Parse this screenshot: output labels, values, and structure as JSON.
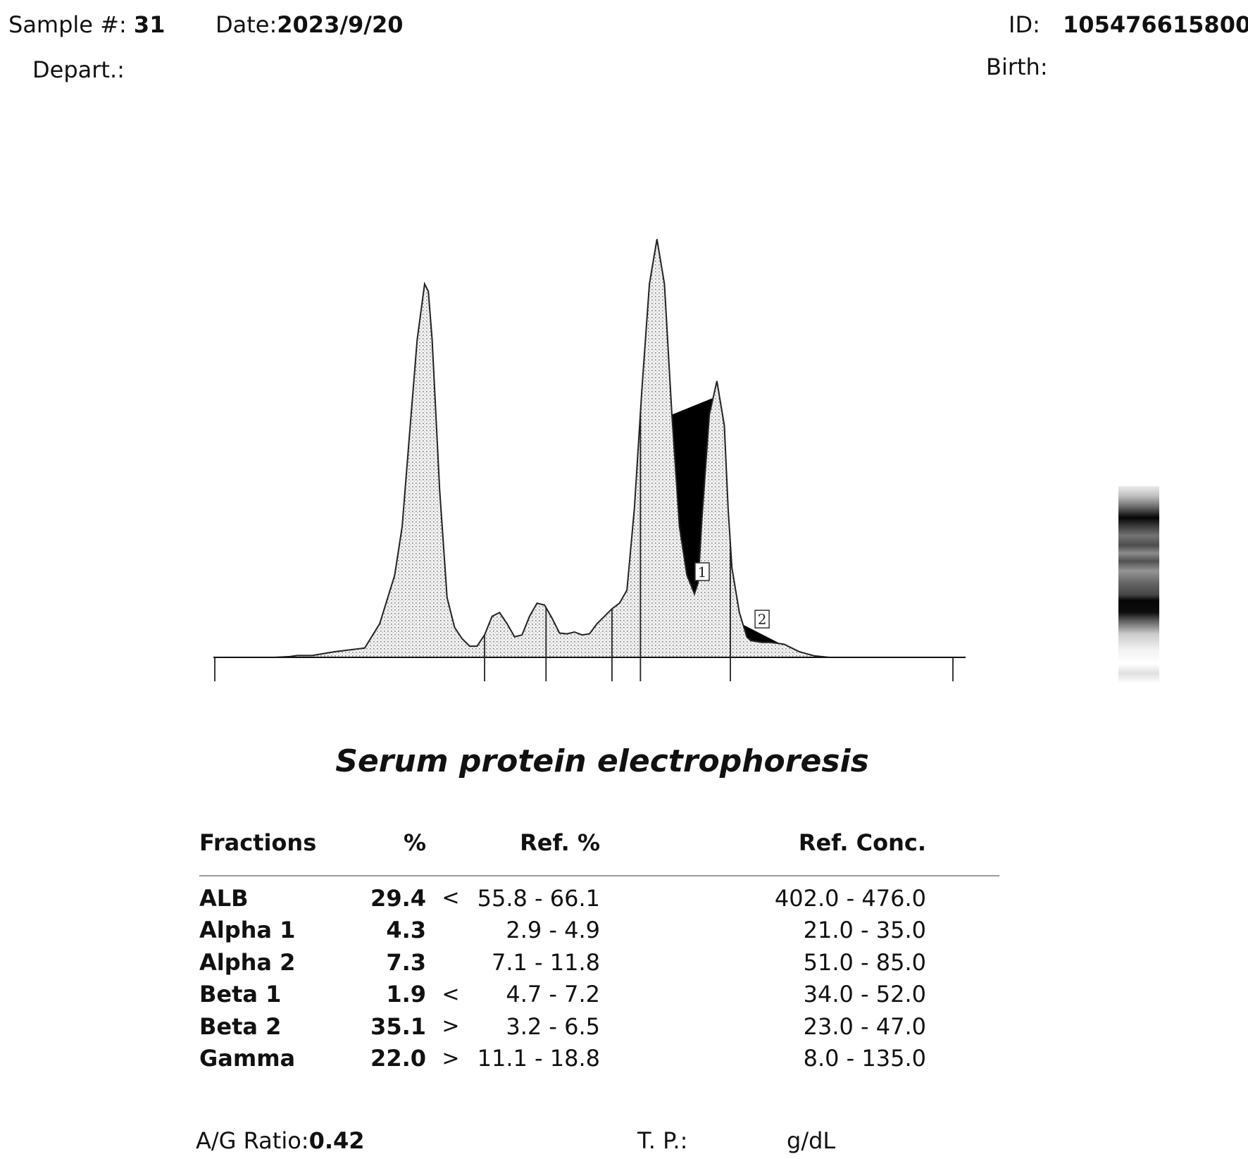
{
  "header": {
    "sample_label": "Sample #:",
    "sample_value": "31",
    "date_label": "Date:",
    "date_value": "2023/9/20",
    "id_label": "ID:",
    "id_value": "105476615800",
    "depart_label": "Depart.:",
    "birth_label": "Birth:"
  },
  "chart_data": {
    "type": "area",
    "title": "",
    "xlabel": "",
    "ylabel": "",
    "xlim": [
      0,
      100
    ],
    "ylim": [
      0,
      100
    ],
    "grid": false,
    "x": [
      0,
      4,
      8,
      10,
      11,
      13,
      16,
      20,
      22,
      24,
      25,
      26,
      27,
      28,
      28.5,
      29,
      30,
      31,
      32,
      33,
      34,
      35,
      36,
      37,
      38,
      39,
      40,
      41,
      42,
      43,
      44,
      45,
      46,
      47,
      48,
      49,
      50,
      51,
      52,
      53,
      54,
      55,
      56,
      57,
      58,
      59,
      60,
      61,
      62,
      63,
      64,
      64.5,
      65,
      66,
      67,
      68,
      68.5,
      69,
      70,
      71,
      71.5,
      72,
      73,
      74,
      75,
      76,
      77,
      78,
      80,
      82,
      84,
      86,
      88,
      90,
      92,
      94,
      96,
      98,
      100
    ],
    "values": [
      0,
      0,
      0,
      0.2,
      0.5,
      0.5,
      1.5,
      2.5,
      9,
      22,
      35,
      60,
      85,
      100,
      98,
      85,
      45,
      16,
      8,
      5,
      3,
      3,
      6,
      11,
      12,
      9,
      5.5,
      6,
      11,
      14.5,
      14,
      10.5,
      6.5,
      6.3,
      6.8,
      6,
      6.3,
      9,
      11,
      13,
      14.5,
      18,
      40,
      72,
      100,
      112,
      100,
      65,
      35,
      22,
      17,
      20,
      37,
      65,
      74,
      62,
      40,
      24,
      12,
      5.5,
      4.5,
      4.3,
      4.0,
      4.0,
      3.8,
      3.5,
      2.5,
      1.5,
      0.4,
      0,
      0,
      0,
      0,
      0,
      0,
      0,
      0,
      0,
      0
    ],
    "fraction_boundaries_x": [
      0,
      36,
      44.2,
      53,
      56.8,
      68.8,
      98.5
    ],
    "shaded_ranges": [
      [
        61,
        66.5
      ],
      [
        70.5,
        75.5
      ]
    ],
    "markers": [
      {
        "label": "1",
        "x": 64
      },
      {
        "label": "2",
        "x": 72
      }
    ]
  },
  "gel_bands": [
    {
      "pos": 0.0,
      "dark": 0.08
    },
    {
      "pos": 0.05,
      "dark": 0.25
    },
    {
      "pos": 0.1,
      "dark": 0.55
    },
    {
      "pos": 0.16,
      "dark": 0.98
    },
    {
      "pos": 0.2,
      "dark": 0.78
    },
    {
      "pos": 0.25,
      "dark": 0.55
    },
    {
      "pos": 0.3,
      "dark": 0.7
    },
    {
      "pos": 0.34,
      "dark": 0.45
    },
    {
      "pos": 0.38,
      "dark": 0.68
    },
    {
      "pos": 0.43,
      "dark": 0.42
    },
    {
      "pos": 0.49,
      "dark": 0.6
    },
    {
      "pos": 0.55,
      "dark": 0.72
    },
    {
      "pos": 0.58,
      "dark": 0.98
    },
    {
      "pos": 0.64,
      "dark": 0.95
    },
    {
      "pos": 0.68,
      "dark": 0.65
    },
    {
      "pos": 0.75,
      "dark": 0.2
    },
    {
      "pos": 0.83,
      "dark": 0.05
    },
    {
      "pos": 0.9,
      "dark": 0.0
    },
    {
      "pos": 0.95,
      "dark": 0.12
    },
    {
      "pos": 1.0,
      "dark": 0.0
    }
  ],
  "report": {
    "title": "Serum protein electrophoresis",
    "headers": {
      "fractions": "Fractions",
      "pct": "%",
      "ref_pct": "Ref. %",
      "ref_conc": "Ref. Conc."
    },
    "rows": [
      {
        "name": "ALB",
        "pct": "29.4",
        "flag": "<",
        "ref_pct": "55.8 - 66.1",
        "ref_conc": "402.0 - 476.0"
      },
      {
        "name": "Alpha 1",
        "pct": "4.3",
        "flag": "",
        "ref_pct": "2.9 -  4.9",
        "ref_conc": "21.0 -  35.0"
      },
      {
        "name": "Alpha 2",
        "pct": "7.3",
        "flag": "",
        "ref_pct": "7.1 - 11.8",
        "ref_conc": "51.0 -  85.0"
      },
      {
        "name": "Beta 1",
        "pct": "1.9",
        "flag": "<",
        "ref_pct": "4.7 -  7.2",
        "ref_conc": "34.0 -  52.0"
      },
      {
        "name": "Beta 2",
        "pct": "35.1",
        "flag": ">",
        "ref_pct": "3.2 -  6.5",
        "ref_conc": "23.0 -  47.0"
      },
      {
        "name": "Gamma",
        "pct": "22.0",
        "flag": ">",
        "ref_pct": "11.1 - 18.8",
        "ref_conc": "8.0 - 135.0"
      }
    ],
    "ag_label": "A/G Ratio:",
    "ag_value": "0.42",
    "tp_label": "T. P.:",
    "tp_unit": "g/dL"
  }
}
